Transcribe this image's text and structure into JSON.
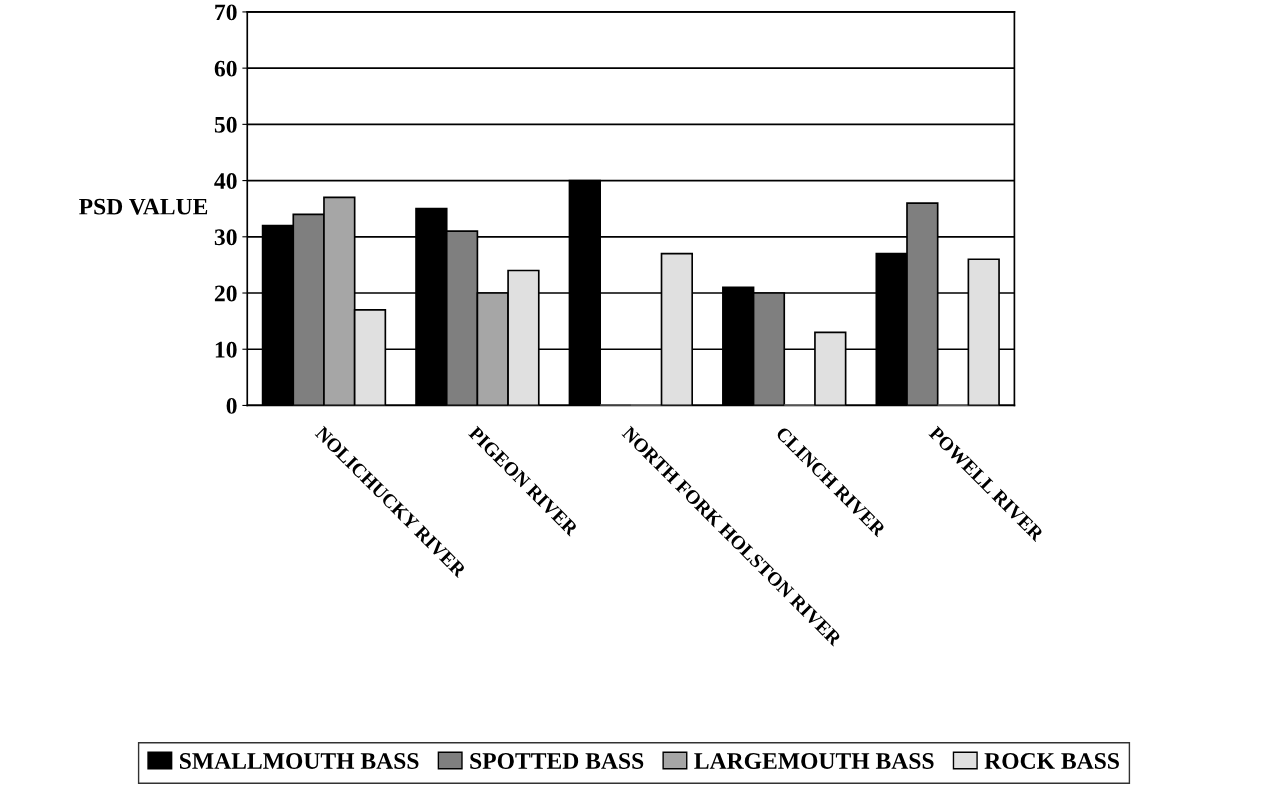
{
  "chart_data": {
    "type": "bar",
    "ylabel": "PSD VALUE",
    "categories": [
      "NOLICHUCKY RIVER",
      "PIGEON RIVER",
      "NORTH FORK HOLSTON RIVER",
      "CLINCH RIVER",
      "POWELL RIVER"
    ],
    "series": [
      {
        "name": "SMALLMOUTH BASS",
        "color": "#000000",
        "values": [
          32,
          35,
          40,
          21,
          27
        ]
      },
      {
        "name": "SPOTTED BASS",
        "color": "#7f7f7f",
        "values": [
          34,
          31,
          0,
          20,
          36
        ]
      },
      {
        "name": "LARGEMOUTH BASS",
        "color": "#a6a6a6",
        "values": [
          37,
          20,
          0,
          0,
          0
        ]
      },
      {
        "name": "ROCK BASS",
        "color": "#e0e0e0",
        "values": [
          17,
          24,
          27,
          13,
          26
        ]
      }
    ],
    "ylim": [
      0,
      70
    ],
    "yticks": [
      0,
      10,
      20,
      30,
      40,
      50,
      60,
      70
    ],
    "grid": "y",
    "legend": "bottom"
  }
}
